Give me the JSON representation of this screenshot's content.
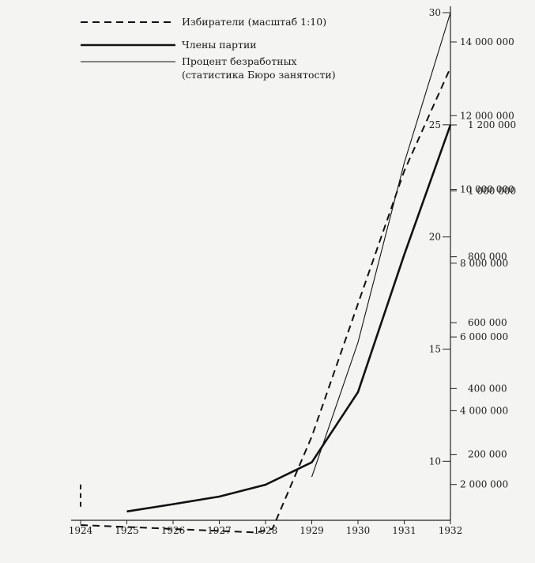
{
  "chart_data": {
    "type": "line",
    "title": "",
    "x": [
      1924,
      1925,
      1926,
      1927,
      1928,
      1929,
      1930,
      1931,
      1932
    ],
    "x_tick_labels": [
      "1924",
      "1925",
      "1926",
      "1927",
      "1928",
      "1929",
      "1930",
      "1931",
      "1932"
    ],
    "grid": false,
    "legend_position": "top-left",
    "legend": [
      {
        "series": "voters",
        "label": "Избиратели (масштаб 1:10)"
      },
      {
        "series": "members",
        "label": "Члены партии"
      },
      {
        "series": "unemployed",
        "label_lines": [
          "Процент безработных",
          "(статистика Бюро занятости)"
        ]
      }
    ],
    "axes": {
      "percent": {
        "ticks": [
          10,
          15,
          20,
          25,
          30
        ],
        "tick_labels": [
          "10",
          "15",
          "20",
          "25",
          "30"
        ],
        "range": [
          0,
          30
        ]
      },
      "voters": {
        "ticks": [
          2000000,
          4000000,
          6000000,
          8000000,
          10000000,
          12000000,
          14000000
        ],
        "tick_labels": [
          "2 000 000",
          "4 000 000",
          "6 000 000",
          "8 000 000",
          "10 000 000",
          "12 000 000",
          "14 000 000"
        ],
        "range": [
          0,
          15000000
        ]
      },
      "members": {
        "ticks": [
          200000,
          400000,
          600000,
          800000,
          1000000,
          1200000
        ],
        "tick_labels": [
          "200 000",
          "400 000",
          "600 000",
          "800 000",
          "1 000 000",
          "1 200 000"
        ],
        "range": [
          0,
          1500000
        ]
      }
    },
    "series": [
      {
        "key": "voters",
        "axis": "voters",
        "style": "dashed",
        "points": [
          [
            1924,
            900000
          ],
          [
            1927.8,
            700000
          ],
          [
            1928.15,
            800000
          ],
          [
            1929,
            3300000
          ],
          [
            1930,
            6900000
          ],
          [
            1931,
            10500000
          ],
          [
            1932,
            13300000
          ]
        ],
        "marker": [
          1924,
          1400000,
          1924,
          2000000
        ]
      },
      {
        "key": "members",
        "axis": "members",
        "style": "solid-thick",
        "points": [
          [
            1925,
            27000
          ],
          [
            1926,
            49000
          ],
          [
            1927,
            72000
          ],
          [
            1928,
            108000
          ],
          [
            1929,
            176000
          ],
          [
            1930,
            389000
          ],
          [
            1931,
            806000
          ],
          [
            1932,
            1200000
          ]
        ]
      },
      {
        "key": "unemployed",
        "axis": "percent",
        "style": "solid-thin",
        "points": [
          [
            1929,
            9.3
          ],
          [
            1930,
            15.3
          ],
          [
            1931,
            23.3
          ],
          [
            1932,
            30
          ]
        ]
      }
    ]
  }
}
